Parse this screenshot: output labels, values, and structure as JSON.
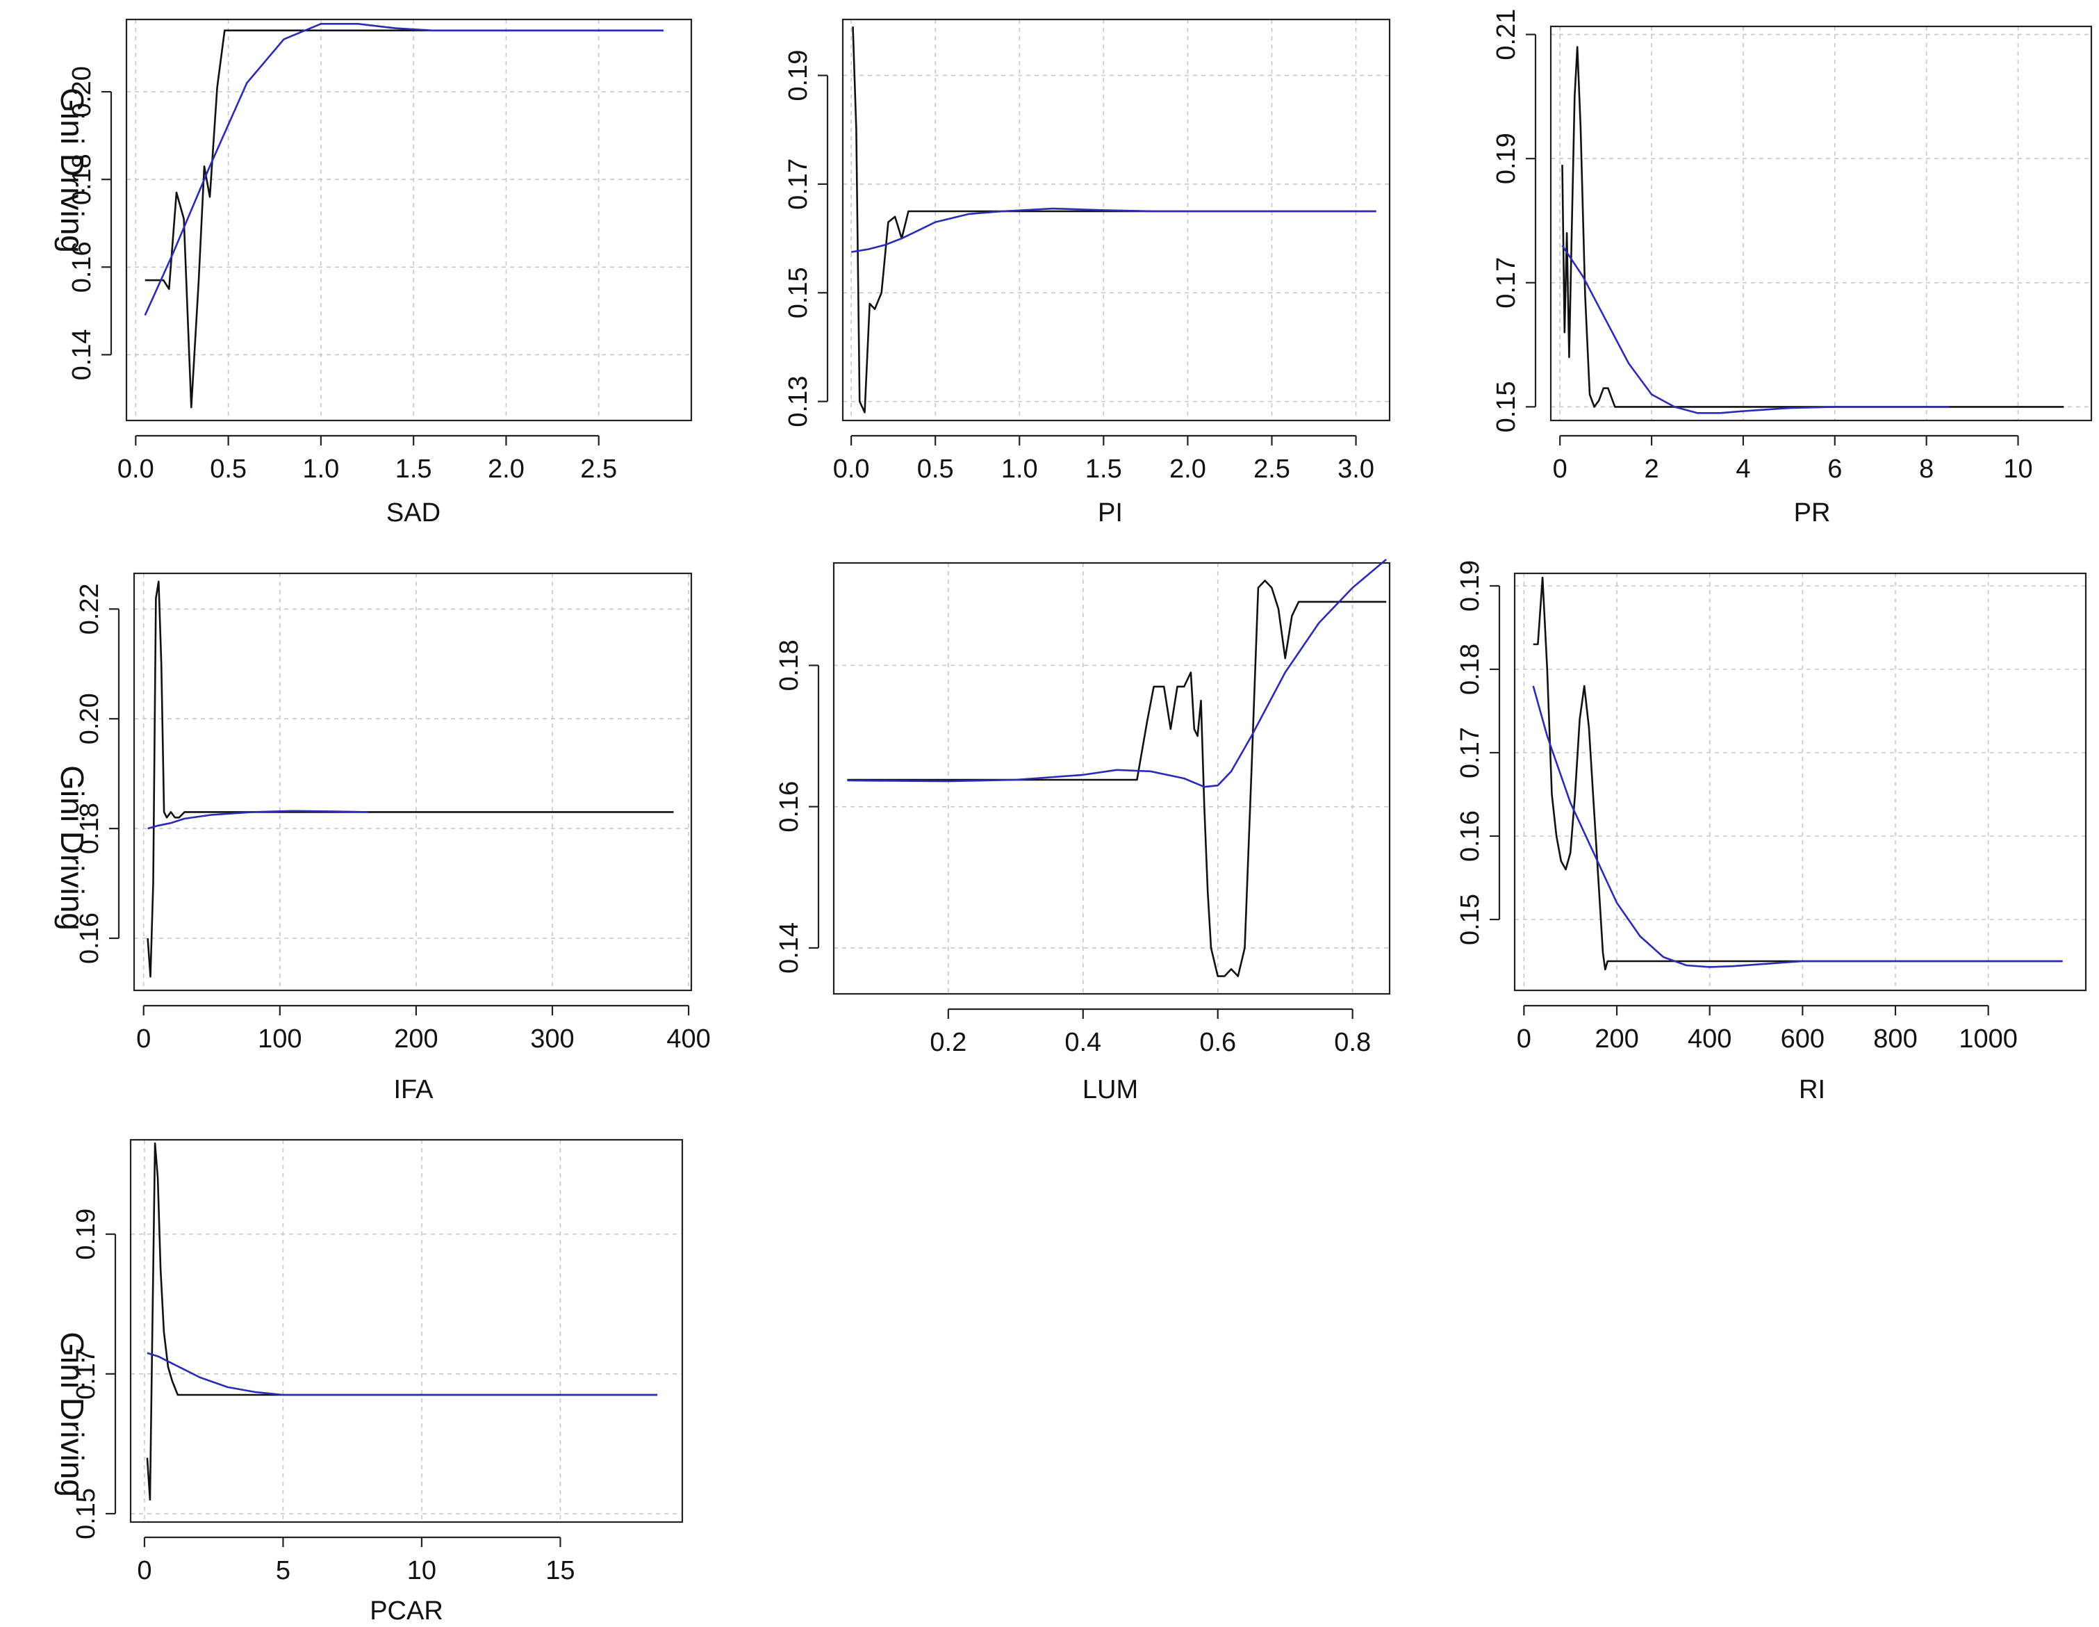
{
  "colors": {
    "raw_series": "#111111",
    "smooth_series": "#2b2bb3",
    "grid": "#c8c8c8"
  },
  "chart_data": [
    {
      "type": "line",
      "xlabel": "SAD",
      "ylabel": "Gini Driving",
      "xlim": [
        -0.05,
        3.0
      ],
      "ylim": [
        0.125,
        0.2165
      ],
      "xticks": [
        0.0,
        0.5,
        1.0,
        1.5,
        2.0,
        2.5
      ],
      "xtick_labels": [
        "0.0",
        "0.5",
        "1.0",
        "1.5",
        "2.0",
        "2.5"
      ],
      "yticks": [
        0.14,
        0.16,
        0.18,
        0.2
      ],
      "ytick_labels": [
        "0.14",
        "0.16",
        "0.18",
        "0.20"
      ],
      "series": [
        {
          "x": [
            0.05,
            0.15,
            0.18,
            0.22,
            0.26,
            0.3,
            0.34,
            0.37,
            0.4,
            0.44,
            0.48,
            0.55,
            1.0,
            1.5,
            2.0,
            2.85
          ],
          "y": [
            0.157,
            0.157,
            0.155,
            0.177,
            0.171,
            0.128,
            0.157,
            0.183,
            0.176,
            0.201,
            0.214,
            0.214,
            0.214,
            0.214,
            0.214,
            0.214
          ]
        },
        {
          "x": [
            0.05,
            0.2,
            0.4,
            0.6,
            0.8,
            1.0,
            1.2,
            1.4,
            1.6,
            2.0,
            2.85
          ],
          "y": [
            0.149,
            0.163,
            0.183,
            0.202,
            0.212,
            0.2155,
            0.2155,
            0.2145,
            0.214,
            0.214,
            0.214
          ]
        }
      ]
    },
    {
      "type": "line",
      "xlabel": "PI",
      "ylabel": "",
      "xlim": [
        -0.05,
        3.2
      ],
      "ylim": [
        0.1265,
        0.2003
      ],
      "xticks": [
        0.0,
        0.5,
        1.0,
        1.5,
        2.0,
        2.5,
        3.0
      ],
      "xtick_labels": [
        "0.0",
        "0.5",
        "1.0",
        "1.5",
        "2.0",
        "2.5",
        "3.0"
      ],
      "yticks": [
        0.13,
        0.15,
        0.17,
        0.19
      ],
      "ytick_labels": [
        "0.13",
        "0.15",
        "0.17",
        "0.19"
      ],
      "series": [
        {
          "x": [
            0.01,
            0.03,
            0.05,
            0.08,
            0.11,
            0.14,
            0.18,
            0.22,
            0.26,
            0.3,
            0.34,
            0.4,
            0.6,
            1.0,
            2.0,
            3.12
          ],
          "y": [
            0.199,
            0.18,
            0.13,
            0.128,
            0.148,
            0.147,
            0.15,
            0.163,
            0.164,
            0.16,
            0.165,
            0.165,
            0.165,
            0.165,
            0.165,
            0.165
          ]
        },
        {
          "x": [
            0.0,
            0.1,
            0.2,
            0.3,
            0.4,
            0.5,
            0.7,
            0.9,
            1.2,
            1.5,
            1.8,
            3.12
          ],
          "y": [
            0.1575,
            0.158,
            0.1588,
            0.16,
            0.1615,
            0.163,
            0.1645,
            0.165,
            0.1655,
            0.1652,
            0.165,
            0.165
          ]
        }
      ]
    },
    {
      "type": "line",
      "xlabel": "PR",
      "ylabel": "",
      "xlim": [
        -0.2,
        11.6
      ],
      "ylim": [
        0.1478,
        0.2113
      ],
      "xticks": [
        0,
        2,
        4,
        6,
        8,
        10
      ],
      "xtick_labels": [
        "0",
        "2",
        "4",
        "6",
        "8",
        "10"
      ],
      "yticks": [
        0.15,
        0.17,
        0.19,
        0.21
      ],
      "ytick_labels": [
        "0.15",
        "0.17",
        "0.19",
        "0.21"
      ],
      "series": [
        {
          "x": [
            0.05,
            0.1,
            0.15,
            0.2,
            0.25,
            0.32,
            0.38,
            0.45,
            0.55,
            0.65,
            0.75,
            0.85,
            0.95,
            1.05,
            1.2,
            2.0,
            5.0,
            11.0
          ],
          "y": [
            0.189,
            0.162,
            0.178,
            0.158,
            0.176,
            0.2,
            0.208,
            0.195,
            0.168,
            0.152,
            0.15,
            0.151,
            0.153,
            0.153,
            0.15,
            0.15,
            0.15,
            0.15
          ]
        },
        {
          "x": [
            0.05,
            0.5,
            1.0,
            1.5,
            2.0,
            2.5,
            3.0,
            3.5,
            4.0,
            5.0,
            6.0,
            8.5
          ],
          "y": [
            0.176,
            0.171,
            0.164,
            0.157,
            0.152,
            0.15,
            0.149,
            0.149,
            0.1493,
            0.1498,
            0.15,
            0.15
          ]
        }
      ]
    },
    {
      "type": "line",
      "xlabel": "IFA",
      "ylabel": "Gini Driving",
      "xlim": [
        -7,
        402
      ],
      "ylim": [
        0.1505,
        0.2265
      ],
      "xticks": [
        0,
        100,
        200,
        300,
        400
      ],
      "xtick_labels": [
        "0",
        "100",
        "200",
        "300",
        "400"
      ],
      "yticks": [
        0.16,
        0.18,
        0.2,
        0.22
      ],
      "ytick_labels": [
        "0.16",
        "0.18",
        "0.20",
        "0.22"
      ],
      "series": [
        {
          "x": [
            3,
            5,
            7,
            9,
            11,
            13,
            15,
            17,
            20,
            23,
            26,
            30,
            40,
            60,
            100,
            200,
            389
          ],
          "y": [
            0.16,
            0.153,
            0.17,
            0.222,
            0.225,
            0.21,
            0.183,
            0.182,
            0.183,
            0.182,
            0.182,
            0.183,
            0.183,
            0.183,
            0.183,
            0.183,
            0.183
          ]
        },
        {
          "x": [
            3,
            10,
            20,
            30,
            50,
            80,
            110,
            140,
            165
          ],
          "y": [
            0.18,
            0.1805,
            0.181,
            0.1818,
            0.1825,
            0.183,
            0.1832,
            0.1831,
            0.183
          ]
        }
      ]
    },
    {
      "type": "line",
      "xlabel": "LUM",
      "ylabel": "",
      "xlim": [
        0.03,
        0.855
      ],
      "ylim": [
        0.1335,
        0.1945
      ],
      "xticks": [
        0.2,
        0.4,
        0.6,
        0.8
      ],
      "xtick_labels": [
        "0.2",
        "0.4",
        "0.6",
        "0.8"
      ],
      "yticks": [
        0.14,
        0.16,
        0.18
      ],
      "ytick_labels": [
        "0.14",
        "0.16",
        "0.18"
      ],
      "series": [
        {
          "x": [
            0.05,
            0.3,
            0.48,
            0.495,
            0.505,
            0.52,
            0.53,
            0.54,
            0.55,
            0.56,
            0.565,
            0.57,
            0.575,
            0.58,
            0.585,
            0.59,
            0.6,
            0.61,
            0.62,
            0.63,
            0.64,
            0.65,
            0.66,
            0.67,
            0.68,
            0.69,
            0.7,
            0.71,
            0.72,
            0.85
          ],
          "y": [
            0.1638,
            0.1638,
            0.1638,
            0.172,
            0.177,
            0.177,
            0.171,
            0.177,
            0.177,
            0.179,
            0.171,
            0.17,
            0.175,
            0.16,
            0.148,
            0.14,
            0.136,
            0.136,
            0.137,
            0.136,
            0.14,
            0.165,
            0.191,
            0.192,
            0.191,
            0.188,
            0.181,
            0.187,
            0.189,
            0.189
          ]
        },
        {
          "x": [
            0.05,
            0.2,
            0.3,
            0.4,
            0.45,
            0.5,
            0.55,
            0.58,
            0.6,
            0.62,
            0.65,
            0.7,
            0.75,
            0.8,
            0.85
          ],
          "y": [
            0.1637,
            0.1636,
            0.1638,
            0.1645,
            0.1652,
            0.165,
            0.164,
            0.1628,
            0.163,
            0.165,
            0.17,
            0.179,
            0.186,
            0.191,
            0.195
          ]
        }
      ]
    },
    {
      "type": "line",
      "xlabel": "RI",
      "ylabel": "",
      "xlim": [
        -20,
        1210
      ],
      "ylim": [
        0.1415,
        0.1915
      ],
      "xticks": [
        0,
        200,
        400,
        600,
        800,
        1000
      ],
      "xtick_labels": [
        "0",
        "200",
        "400",
        "600",
        "800",
        "1000"
      ],
      "yticks": [
        0.15,
        0.16,
        0.17,
        0.18,
        0.19
      ],
      "ytick_labels": [
        "0.15",
        "0.16",
        "0.17",
        "0.18",
        "0.19"
      ],
      "series": [
        {
          "x": [
            20,
            30,
            40,
            50,
            60,
            70,
            80,
            90,
            100,
            110,
            120,
            130,
            140,
            150,
            160,
            170,
            175,
            180,
            190,
            300,
            1160
          ],
          "y": [
            0.183,
            0.183,
            0.191,
            0.18,
            0.165,
            0.16,
            0.157,
            0.156,
            0.158,
            0.165,
            0.174,
            0.178,
            0.173,
            0.164,
            0.155,
            0.146,
            0.144,
            0.145,
            0.145,
            0.145,
            0.145
          ]
        },
        {
          "x": [
            20,
            50,
            100,
            150,
            200,
            250,
            300,
            350,
            400,
            450,
            500,
            600,
            700,
            1160
          ],
          "y": [
            0.178,
            0.172,
            0.164,
            0.158,
            0.152,
            0.148,
            0.1455,
            0.1445,
            0.1443,
            0.1444,
            0.1446,
            0.145,
            0.145,
            0.145
          ]
        }
      ]
    },
    {
      "type": "line",
      "xlabel": "PCAR",
      "ylabel": "Gini Driving",
      "xlim": [
        -0.5,
        19.4
      ],
      "ylim": [
        0.1488,
        0.2035
      ],
      "xticks": [
        0,
        5,
        10,
        15
      ],
      "xtick_labels": [
        "0",
        "5",
        "10",
        "15"
      ],
      "yticks": [
        0.15,
        0.17,
        0.19
      ],
      "ytick_labels": [
        "0.15",
        "0.17",
        "0.19"
      ],
      "series": [
        {
          "x": [
            0.1,
            0.2,
            0.28,
            0.38,
            0.48,
            0.58,
            0.7,
            0.85,
            1.0,
            1.2,
            1.5,
            2.0,
            5.0,
            10.0,
            18.5
          ],
          "y": [
            0.158,
            0.152,
            0.175,
            0.203,
            0.198,
            0.185,
            0.176,
            0.171,
            0.169,
            0.167,
            0.167,
            0.167,
            0.167,
            0.167,
            0.167
          ]
        },
        {
          "x": [
            0.1,
            0.5,
            1.0,
            1.5,
            2.0,
            3.0,
            4.0,
            5.0,
            6.0,
            8.0,
            10.0,
            18.5
          ],
          "y": [
            0.173,
            0.1725,
            0.1715,
            0.1705,
            0.1695,
            0.1681,
            0.1674,
            0.167,
            0.167,
            0.167,
            0.167,
            0.167
          ]
        }
      ]
    }
  ]
}
